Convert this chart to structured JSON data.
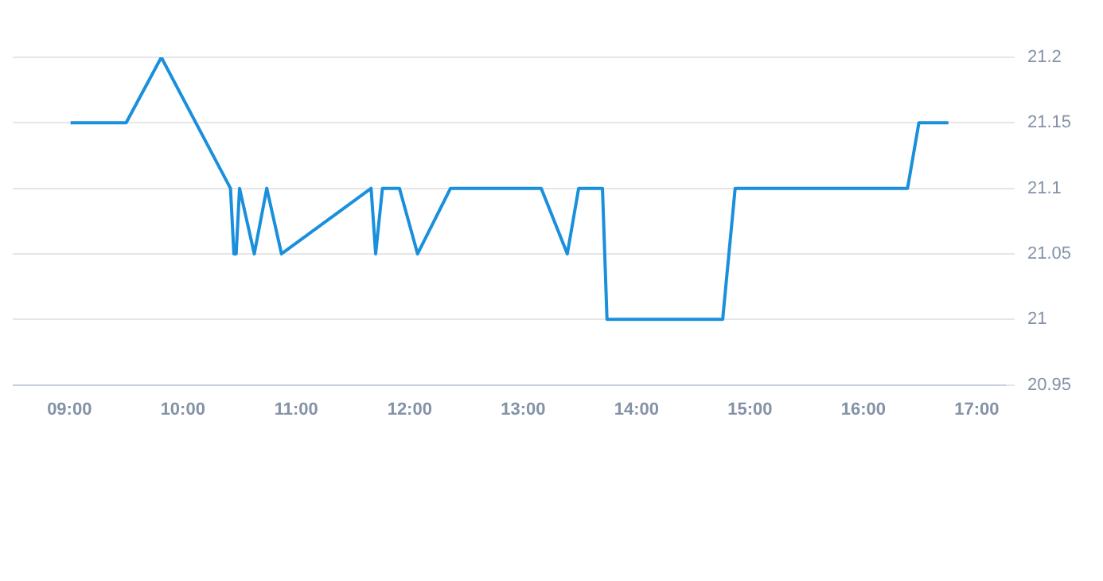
{
  "chart_data": {
    "type": "line",
    "x": [
      9.01,
      9.5,
      9.81,
      10.42,
      10.45,
      10.47,
      10.5,
      10.63,
      10.74,
      10.87,
      11.66,
      11.7,
      11.76,
      11.91,
      12.07,
      12.36,
      13.16,
      13.39,
      13.49,
      13.7,
      13.74,
      14.76,
      14.87,
      16.39,
      16.49,
      16.75
    ],
    "series": [
      {
        "color": "#1a8fdc",
        "values": [
          21.15,
          21.15,
          21.2,
          21.1,
          21.05,
          21.05,
          21.1,
          21.05,
          21.1,
          21.05,
          21.1,
          21.05,
          21.1,
          21.1,
          21.05,
          21.1,
          21.1,
          21.05,
          21.1,
          21.1,
          21.0,
          21.0,
          21.1,
          21.1,
          21.15,
          21.15
        ]
      }
    ],
    "xlim": [
      8.5,
      17.25
    ],
    "xticks": [
      {
        "value": 9,
        "label": "09:00"
      },
      {
        "value": 10,
        "label": "10:00"
      },
      {
        "value": 11,
        "label": "11:00"
      },
      {
        "value": 12,
        "label": "12:00"
      },
      {
        "value": 13,
        "label": "13:00"
      },
      {
        "value": 14,
        "label": "14:00"
      },
      {
        "value": 15,
        "label": "15:00"
      },
      {
        "value": 16,
        "label": "16:00"
      },
      {
        "value": 17,
        "label": "17:00"
      }
    ],
    "ylim": [
      20.95,
      21.2
    ],
    "yticks": [
      20.95,
      21,
      21.05,
      21.1,
      21.15,
      21.2
    ],
    "grid": "y",
    "legend": false,
    "marker": "none",
    "line_style": "solid"
  }
}
